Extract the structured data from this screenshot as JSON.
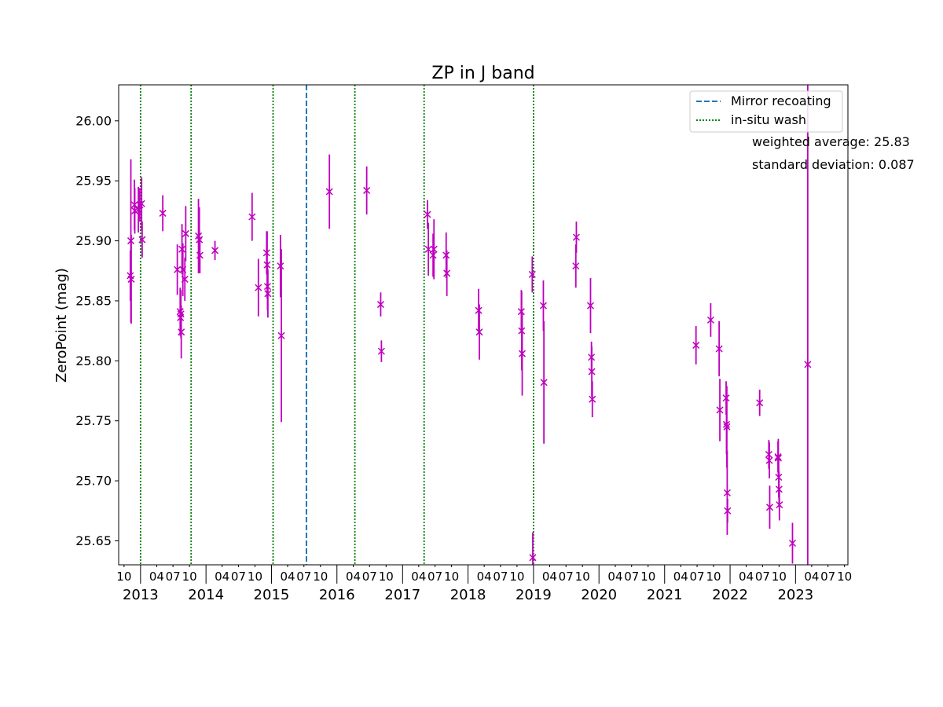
{
  "chart_data": {
    "type": "scatter",
    "title": "ZP in J band",
    "xlabel": "",
    "ylabel": "ZeroPoint (mag)",
    "xlim": [
      "2012-09-01",
      "2023-10-20"
    ],
    "ylim": [
      25.63,
      26.03
    ],
    "yticks": [
      "25.65",
      "25.70",
      "25.75",
      "25.80",
      "25.85",
      "25.90",
      "25.95",
      "26.00"
    ],
    "yticks_values": [
      25.65,
      25.7,
      25.75,
      25.8,
      25.85,
      25.9,
      25.95,
      26.0
    ],
    "month_ticks": [
      {
        "date": "2012-10-01",
        "label": "10"
      },
      {
        "date": "2013-04-01",
        "label": "04"
      },
      {
        "date": "2013-07-01",
        "label": "07"
      },
      {
        "date": "2013-10-01",
        "label": "10"
      },
      {
        "date": "2014-04-01",
        "label": "04"
      },
      {
        "date": "2014-07-01",
        "label": "07"
      },
      {
        "date": "2014-10-01",
        "label": "10"
      },
      {
        "date": "2015-04-01",
        "label": "04"
      },
      {
        "date": "2015-07-01",
        "label": "07"
      },
      {
        "date": "2015-10-01",
        "label": "10"
      },
      {
        "date": "2016-04-01",
        "label": "04"
      },
      {
        "date": "2016-07-01",
        "label": "07"
      },
      {
        "date": "2016-10-01",
        "label": "10"
      },
      {
        "date": "2017-04-01",
        "label": "04"
      },
      {
        "date": "2017-07-01",
        "label": "07"
      },
      {
        "date": "2017-10-01",
        "label": "10"
      },
      {
        "date": "2018-04-01",
        "label": "04"
      },
      {
        "date": "2018-07-01",
        "label": "07"
      },
      {
        "date": "2018-10-01",
        "label": "10"
      },
      {
        "date": "2019-04-01",
        "label": "04"
      },
      {
        "date": "2019-07-01",
        "label": "07"
      },
      {
        "date": "2019-10-01",
        "label": "10"
      },
      {
        "date": "2020-04-01",
        "label": "04"
      },
      {
        "date": "2020-07-01",
        "label": "07"
      },
      {
        "date": "2020-10-01",
        "label": "10"
      },
      {
        "date": "2021-04-01",
        "label": "04"
      },
      {
        "date": "2021-07-01",
        "label": "07"
      },
      {
        "date": "2021-10-01",
        "label": "10"
      },
      {
        "date": "2022-04-01",
        "label": "04"
      },
      {
        "date": "2022-07-01",
        "label": "07"
      },
      {
        "date": "2022-10-01",
        "label": "10"
      },
      {
        "date": "2023-04-01",
        "label": "04"
      },
      {
        "date": "2023-07-01",
        "label": "07"
      },
      {
        "date": "2023-10-01",
        "label": "10"
      }
    ],
    "year_ticks": [
      {
        "date": "2013-01-01",
        "label": "2013"
      },
      {
        "date": "2014-01-01",
        "label": "2014"
      },
      {
        "date": "2015-01-01",
        "label": "2015"
      },
      {
        "date": "2016-01-01",
        "label": "2016"
      },
      {
        "date": "2017-01-01",
        "label": "2017"
      },
      {
        "date": "2018-01-01",
        "label": "2018"
      },
      {
        "date": "2019-01-01",
        "label": "2019"
      },
      {
        "date": "2020-01-01",
        "label": "2020"
      },
      {
        "date": "2021-01-01",
        "label": "2021"
      },
      {
        "date": "2022-01-01",
        "label": "2022"
      },
      {
        "date": "2023-01-01",
        "label": "2023"
      }
    ],
    "legend": {
      "placement": "top-right",
      "entries": [
        {
          "label": "Mirror recoating",
          "style": "dashed",
          "color": "#1f77b4"
        },
        {
          "label": "in-situ wash",
          "style": "dotted",
          "color": "#008000"
        }
      ]
    },
    "annotations": [
      {
        "label": "weighted average: 25.83"
      },
      {
        "label": "standard deviation: 0.087"
      }
    ],
    "vlines": [
      {
        "date": "2013-01-01",
        "kind": "in-situ wash"
      },
      {
        "date": "2013-10-10",
        "kind": "in-situ wash"
      },
      {
        "date": "2015-01-10",
        "kind": "in-situ wash"
      },
      {
        "date": "2015-07-15",
        "kind": "Mirror recoating"
      },
      {
        "date": "2016-04-10",
        "kind": "in-situ wash"
      },
      {
        "date": "2017-05-01",
        "kind": "in-situ wash"
      },
      {
        "date": "2019-01-01",
        "kind": "in-situ wash"
      }
    ],
    "marker_color": "#bf00bf",
    "grid": false,
    "points": [
      {
        "x": "2012-11-05",
        "y": 25.871,
        "err": 0.021
      },
      {
        "x": "2012-11-08",
        "y": 25.9,
        "err": 0.068
      },
      {
        "x": "2012-11-10",
        "y": 25.868,
        "err": 0.037
      },
      {
        "x": "2012-11-28",
        "y": 25.93,
        "err": 0.021
      },
      {
        "x": "2012-11-30",
        "y": 25.925,
        "err": 0.019
      },
      {
        "x": "2012-12-20",
        "y": 25.926,
        "err": 0.019
      },
      {
        "x": "2012-12-28",
        "y": 25.93,
        "err": 0.014
      },
      {
        "x": "2013-01-07",
        "y": 25.931,
        "err": 0.022
      },
      {
        "x": "2013-01-10",
        "y": 25.901,
        "err": 0.015
      },
      {
        "x": "2013-05-05",
        "y": 25.923,
        "err": 0.015
      },
      {
        "x": "2013-07-25",
        "y": 25.876,
        "err": 0.021
      },
      {
        "x": "2013-08-10",
        "y": 25.841,
        "err": 0.02
      },
      {
        "x": "2013-08-12",
        "y": 25.836,
        "err": 0.015
      },
      {
        "x": "2013-08-14",
        "y": 25.839,
        "err": 0.02
      },
      {
        "x": "2013-08-16",
        "y": 25.824,
        "err": 0.022
      },
      {
        "x": "2013-08-20",
        "y": 25.893,
        "err": 0.021
      },
      {
        "x": "2013-08-25",
        "y": 25.876,
        "err": 0.022
      },
      {
        "x": "2013-09-05",
        "y": 25.868,
        "err": 0.018
      },
      {
        "x": "2013-09-10",
        "y": 25.906,
        "err": 0.023
      },
      {
        "x": "2013-11-20",
        "y": 25.904,
        "err": 0.031
      },
      {
        "x": "2013-11-25",
        "y": 25.901,
        "err": 0.027
      },
      {
        "x": "2013-11-28",
        "y": 25.888,
        "err": 0.015
      },
      {
        "x": "2014-02-20",
        "y": 25.892,
        "err": 0.008
      },
      {
        "x": "2014-09-15",
        "y": 25.92,
        "err": 0.02
      },
      {
        "x": "2014-10-20",
        "y": 25.861,
        "err": 0.024
      },
      {
        "x": "2014-12-05",
        "y": 25.89,
        "err": 0.018
      },
      {
        "x": "2014-12-08",
        "y": 25.88,
        "err": 0.028
      },
      {
        "x": "2014-12-10",
        "y": 25.862,
        "err": 0.02
      },
      {
        "x": "2014-12-12",
        "y": 25.856,
        "err": 0.02
      },
      {
        "x": "2015-02-20",
        "y": 25.879,
        "err": 0.026
      },
      {
        "x": "2015-02-25",
        "y": 25.821,
        "err": 0.072
      },
      {
        "x": "2015-11-20",
        "y": 25.941,
        "err": 0.031
      },
      {
        "x": "2016-06-15",
        "y": 25.942,
        "err": 0.02
      },
      {
        "x": "2016-09-01",
        "y": 25.847,
        "err": 0.01
      },
      {
        "x": "2016-09-05",
        "y": 25.808,
        "err": 0.009
      },
      {
        "x": "2017-05-20",
        "y": 25.922,
        "err": 0.012
      },
      {
        "x": "2017-05-25",
        "y": 25.893,
        "err": 0.022
      },
      {
        "x": "2017-06-20",
        "y": 25.888,
        "err": 0.018
      },
      {
        "x": "2017-06-25",
        "y": 25.893,
        "err": 0.025
      },
      {
        "x": "2017-09-01",
        "y": 25.888,
        "err": 0.019
      },
      {
        "x": "2017-09-05",
        "y": 25.873,
        "err": 0.019
      },
      {
        "x": "2018-03-01",
        "y": 25.842,
        "err": 0.018
      },
      {
        "x": "2018-03-05",
        "y": 25.824,
        "err": 0.023
      },
      {
        "x": "2018-10-25",
        "y": 25.841,
        "err": 0.018
      },
      {
        "x": "2018-10-27",
        "y": 25.825,
        "err": 0.033
      },
      {
        "x": "2018-10-30",
        "y": 25.806,
        "err": 0.035
      },
      {
        "x": "2018-12-25",
        "y": 25.872,
        "err": 0.015
      },
      {
        "x": "2018-12-28",
        "y": 25.636,
        "err": 0.021
      },
      {
        "x": "2019-02-25",
        "y": 25.846,
        "err": 0.021
      },
      {
        "x": "2019-02-28",
        "y": 25.782,
        "err": 0.051
      },
      {
        "x": "2019-08-25",
        "y": 25.879,
        "err": 0.018
      },
      {
        "x": "2019-08-28",
        "y": 25.903,
        "err": 0.013
      },
      {
        "x": "2019-11-15",
        "y": 25.846,
        "err": 0.023
      },
      {
        "x": "2019-11-20",
        "y": 25.803,
        "err": 0.013
      },
      {
        "x": "2019-11-22",
        "y": 25.791,
        "err": 0.021
      },
      {
        "x": "2019-11-25",
        "y": 25.768,
        "err": 0.015
      },
      {
        "x": "2021-06-25",
        "y": 25.813,
        "err": 0.016
      },
      {
        "x": "2021-09-15",
        "y": 25.834,
        "err": 0.014
      },
      {
        "x": "2021-11-01",
        "y": 25.81,
        "err": 0.023
      },
      {
        "x": "2021-11-05",
        "y": 25.759,
        "err": 0.026
      },
      {
        "x": "2021-12-10",
        "y": 25.769,
        "err": 0.014
      },
      {
        "x": "2021-12-12",
        "y": 25.747,
        "err": 0.025
      },
      {
        "x": "2021-12-14",
        "y": 25.745,
        "err": 0.034
      },
      {
        "x": "2021-12-16",
        "y": 25.69,
        "err": 0.035
      },
      {
        "x": "2021-12-18",
        "y": 25.675,
        "err": 0.01
      },
      {
        "x": "2022-06-15",
        "y": 25.765,
        "err": 0.011
      },
      {
        "x": "2022-08-05",
        "y": 25.722,
        "err": 0.012
      },
      {
        "x": "2022-08-08",
        "y": 25.717,
        "err": 0.015
      },
      {
        "x": "2022-08-10",
        "y": 25.678,
        "err": 0.018
      },
      {
        "x": "2022-09-25",
        "y": 25.72,
        "err": 0.013
      },
      {
        "x": "2022-09-27",
        "y": 25.719,
        "err": 0.016
      },
      {
        "x": "2022-09-29",
        "y": 25.703,
        "err": 0.017
      },
      {
        "x": "2022-10-01",
        "y": 25.693,
        "err": 0.015
      },
      {
        "x": "2022-10-03",
        "y": 25.68,
        "err": 0.013
      },
      {
        "x": "2022-12-15",
        "y": 25.648,
        "err": 0.017
      },
      {
        "x": "2023-03-10",
        "y": 25.797,
        "err": 0.3
      }
    ]
  }
}
